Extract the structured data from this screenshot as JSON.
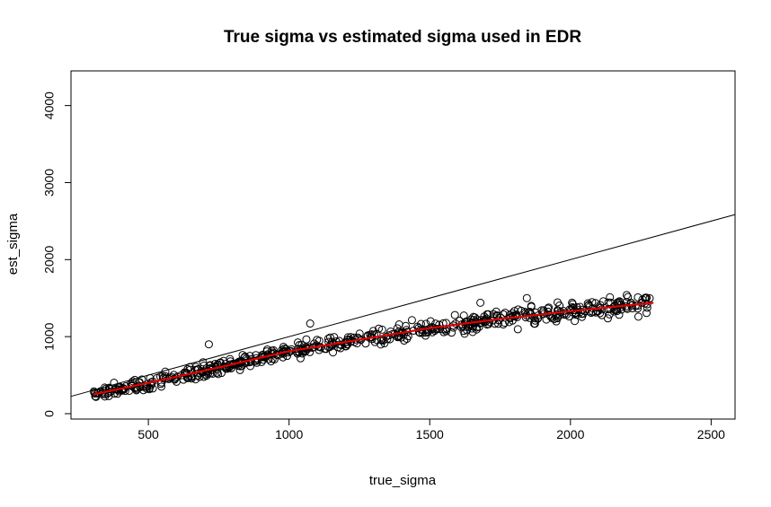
{
  "chart_data": {
    "type": "scatter",
    "title": "True sigma vs estimated sigma used in EDR",
    "xlabel": "true_sigma",
    "ylabel": "est_sigma",
    "xlim": [
      225,
      2585
    ],
    "ylim": [
      -70,
      4450
    ],
    "xticks": [
      500,
      1000,
      1500,
      2000,
      2500
    ],
    "yticks": [
      0,
      1000,
      2000,
      3000,
      4000
    ],
    "xtick_labels": [
      "500",
      "1000",
      "1500",
      "2000",
      "2500"
    ],
    "ytick_labels": [
      "0",
      "1000",
      "2000",
      "3000",
      "4000"
    ],
    "grid": false,
    "legend": "none",
    "points_style": "open-circle",
    "point_color": "#000000",
    "fit_color": "#e00000",
    "identity_line": {
      "slope": 1,
      "intercept": 0,
      "color": "#000000"
    },
    "point_cloud": {
      "x_range": [
        305,
        2295
      ],
      "count": 620,
      "trend": [
        {
          "x": 305,
          "y": 250
        },
        {
          "x": 500,
          "y": 400
        },
        {
          "x": 750,
          "y": 600
        },
        {
          "x": 1000,
          "y": 810
        },
        {
          "x": 1250,
          "y": 960
        },
        {
          "x": 1500,
          "y": 1110
        },
        {
          "x": 1750,
          "y": 1230
        },
        {
          "x": 2000,
          "y": 1330
        },
        {
          "x": 2295,
          "y": 1440
        }
      ]
    },
    "fit_line": [
      {
        "x": 305,
        "y": 250
      },
      {
        "x": 500,
        "y": 400
      },
      {
        "x": 750,
        "y": 600
      },
      {
        "x": 1000,
        "y": 810
      },
      {
        "x": 1250,
        "y": 960
      },
      {
        "x": 1500,
        "y": 1110
      },
      {
        "x": 1750,
        "y": 1230
      },
      {
        "x": 2000,
        "y": 1330
      },
      {
        "x": 2295,
        "y": 1440
      }
    ],
    "notable_points": [
      {
        "x": 715,
        "y": 900
      },
      {
        "x": 1075,
        "y": 1170
      },
      {
        "x": 1845,
        "y": 1500
      },
      {
        "x": 2200,
        "y": 1540
      },
      {
        "x": 1680,
        "y": 1440
      }
    ]
  }
}
